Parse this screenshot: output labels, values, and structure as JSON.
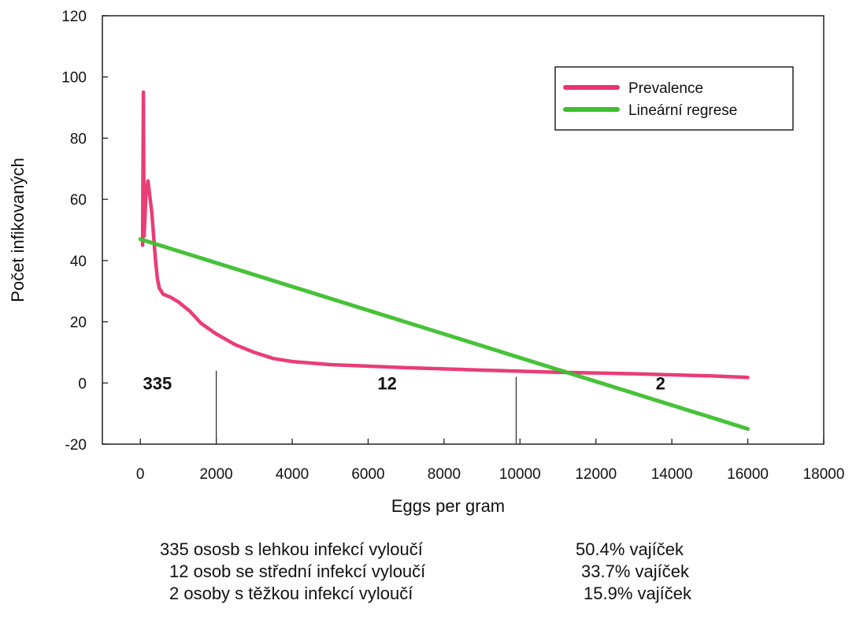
{
  "chart_data": {
    "type": "line",
    "xlabel": "Eggs per gram",
    "ylabel": "Počet infikovaných",
    "xlim": [
      -1000,
      18000
    ],
    "ylim": [
      -20,
      120
    ],
    "x_ticks": [
      0,
      2000,
      4000,
      6000,
      8000,
      10000,
      12000,
      14000,
      16000,
      18000
    ],
    "y_ticks": [
      -20,
      0,
      20,
      40,
      60,
      80,
      100,
      120
    ],
    "grid": false,
    "legend_position": "top-right",
    "series": [
      {
        "name": "Prevalence",
        "color": "#e8336e",
        "points": [
          [
            60,
            45
          ],
          [
            80,
            95
          ],
          [
            100,
            48
          ],
          [
            150,
            62
          ],
          [
            200,
            66
          ],
          [
            260,
            60
          ],
          [
            300,
            56
          ],
          [
            350,
            48
          ],
          [
            400,
            40
          ],
          [
            450,
            34
          ],
          [
            500,
            31
          ],
          [
            600,
            29
          ],
          [
            800,
            28
          ],
          [
            1000,
            26.5
          ],
          [
            1300,
            23.5
          ],
          [
            1600,
            19.5
          ],
          [
            2000,
            16
          ],
          [
            2500,
            12.5
          ],
          [
            3000,
            10
          ],
          [
            3500,
            8
          ],
          [
            4000,
            7
          ],
          [
            5000,
            6
          ],
          [
            7000,
            5
          ],
          [
            9000,
            4.2
          ],
          [
            11000,
            3.5
          ],
          [
            13000,
            3
          ],
          [
            15000,
            2.3
          ],
          [
            16000,
            1.8
          ]
        ]
      },
      {
        "name": "Lineární regrese",
        "color": "#3dbf2e",
        "points": [
          [
            0,
            47
          ],
          [
            16000,
            -15
          ]
        ]
      }
    ],
    "group_labels": [
      {
        "x": 450,
        "y": 0,
        "text": "335"
      },
      {
        "x": 6500,
        "y": 0,
        "text": "12"
      },
      {
        "x": 13700,
        "y": 0,
        "text": "2"
      }
    ],
    "dividers": [
      {
        "x": 2000,
        "y_from": -20,
        "y_to": 4
      },
      {
        "x": 9900,
        "y_from": -20,
        "y_to": 2
      }
    ]
  },
  "footnotes": [
    {
      "text": "335 ososb s lehkou infekcí vyloučí",
      "pct": "50.4% vajíček"
    },
    {
      "text": "12 osob se střední infekcí vyloučí",
      "pct": "33.7% vajíček"
    },
    {
      "text": "2 osoby s těžkou infekcí vyloučí",
      "pct": "15.9% vajíček"
    }
  ]
}
